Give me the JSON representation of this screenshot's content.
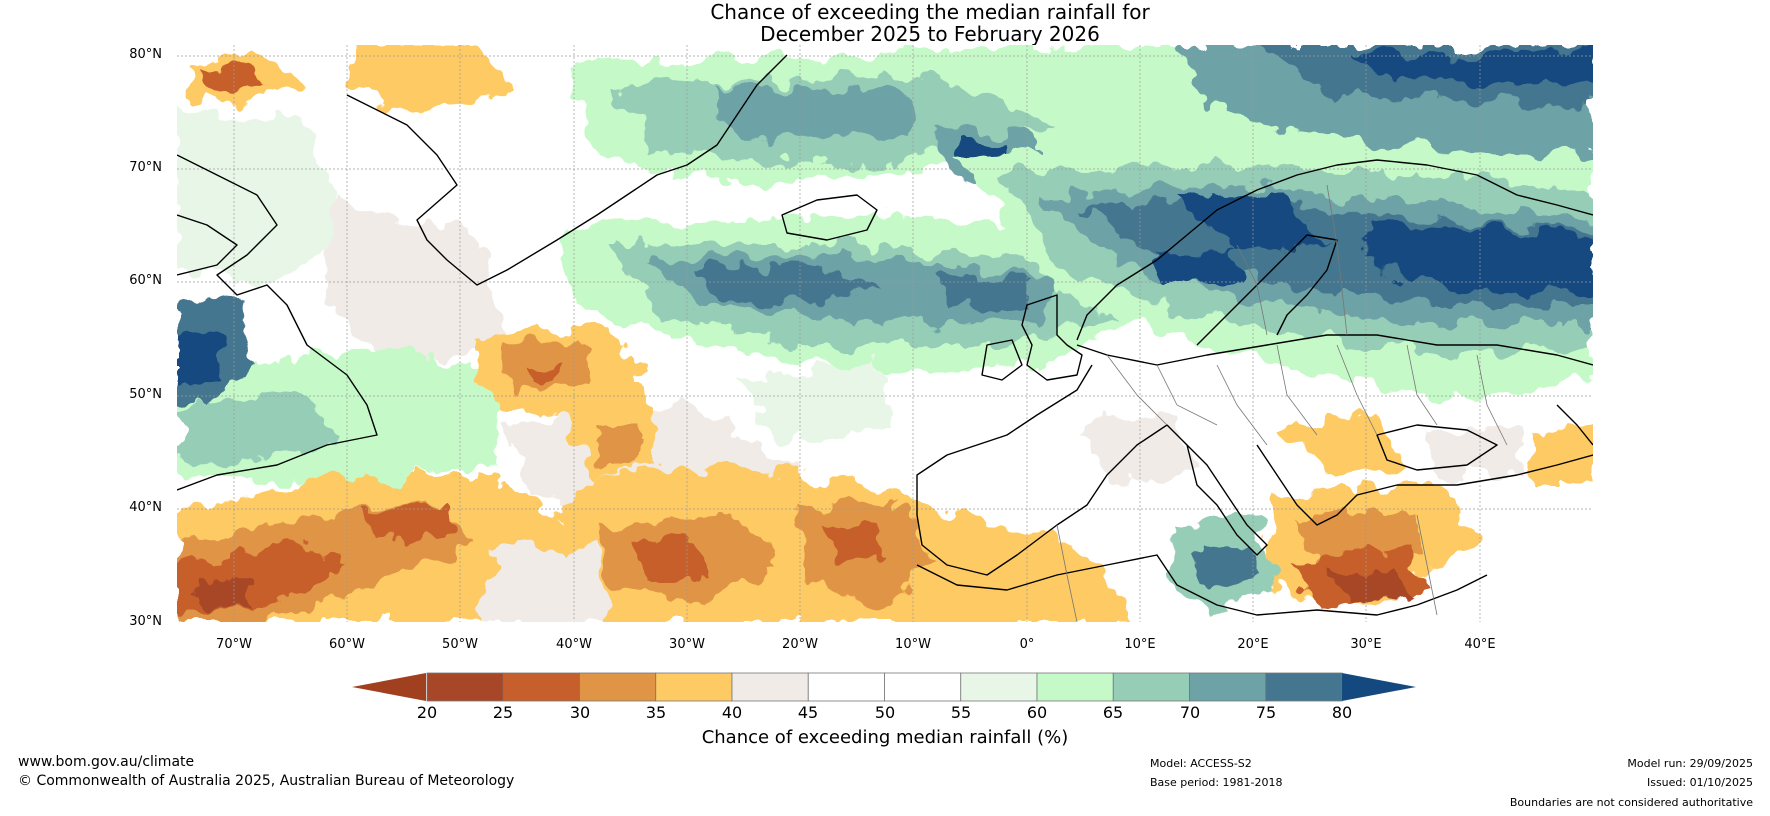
{
  "title": {
    "line1": "Chance of exceeding the median rainfall for",
    "line2": "December 2025 to February 2026"
  },
  "map": {
    "region": "Europe / North Atlantic",
    "lat_labels": [
      "80°N",
      "70°N",
      "60°N",
      "50°N",
      "40°N",
      "30°N"
    ],
    "lon_labels": [
      "70°W",
      "60°W",
      "50°W",
      "40°W",
      "30°W",
      "20°W",
      "10°W",
      "0°",
      "10°E",
      "20°E",
      "30°E",
      "40°E"
    ],
    "lon_range": [
      -75,
      50
    ],
    "lat_range": [
      30,
      81
    ]
  },
  "colorbar": {
    "ticks": [
      "20",
      "25",
      "30",
      "35",
      "40",
      "45",
      "50",
      "55",
      "60",
      "65",
      "70",
      "75",
      "80"
    ],
    "label": "Chance of exceeding median rainfall (%)",
    "under_color": "#a1401f",
    "over_color": "#14497f",
    "colors": [
      "#a74728",
      "#c75f2c",
      "#e09445",
      "#fdca63",
      "#f0ebe7",
      "#ffffff",
      "#ffffff",
      "#e8f6e8",
      "#c6f9c8",
      "#96cdb6",
      "#6da2a6",
      "#44768f"
    ]
  },
  "footer": {
    "website": "www.bom.gov.au/climate",
    "copyright": "© Commonwealth of Australia 2025, Australian Bureau of Meteorology",
    "model": "Model: ACCESS-S2",
    "base_period": "Base period: 1981-2018",
    "model_run": "Model run: 29/09/2025",
    "issued": "Issued: 01/10/2025",
    "disclaimer": "Boundaries are not considered authoritative"
  }
}
